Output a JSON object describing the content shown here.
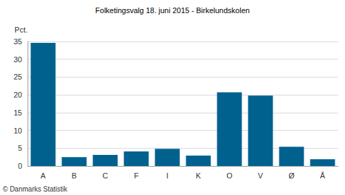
{
  "chart_data": {
    "type": "bar",
    "title": "Folketingsvalg 18. juni 2015 - Birkelundskolen",
    "y_label": "Pct.",
    "categories": [
      "A",
      "B",
      "C",
      "F",
      "I",
      "K",
      "O",
      "V",
      "Ø",
      "Å"
    ],
    "values": [
      34.6,
      2.5,
      3.1,
      4.1,
      4.8,
      2.9,
      20.7,
      19.8,
      5.4,
      1.9
    ],
    "color": "#00618f",
    "ylim": [
      0,
      35
    ],
    "yticks": [
      0,
      5,
      10,
      15,
      20,
      25,
      30,
      35
    ],
    "grid": true,
    "annotations": [
      "© Danmarks Statistik"
    ]
  }
}
